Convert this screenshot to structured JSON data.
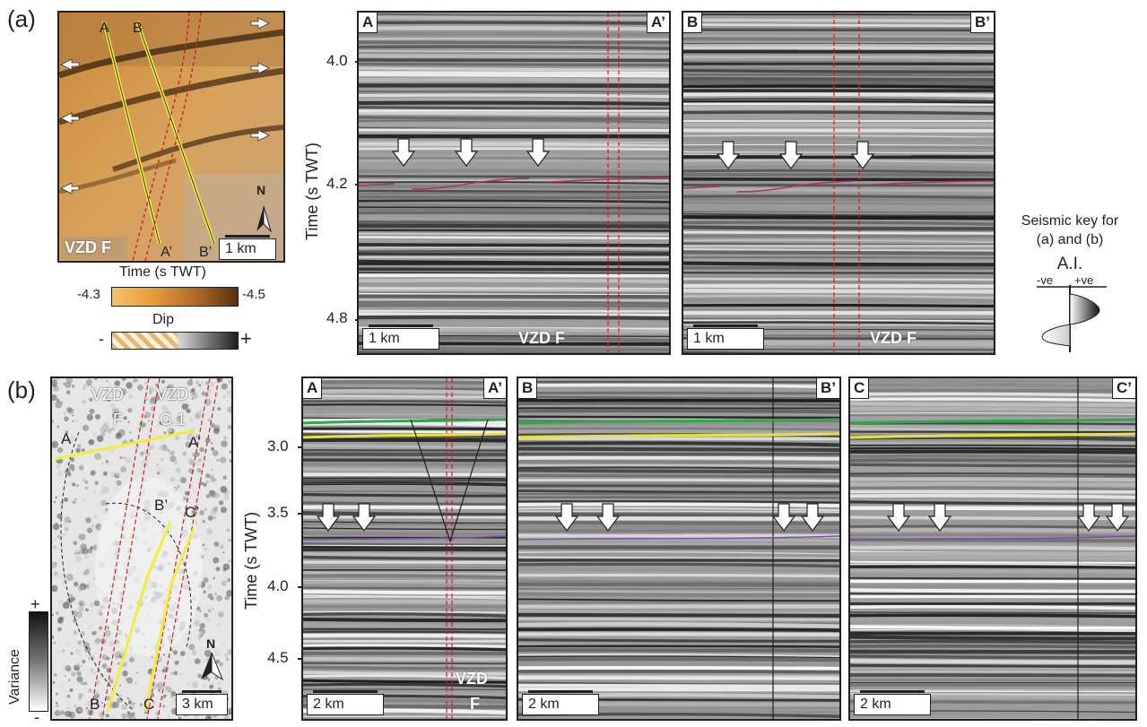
{
  "panel_a": {
    "label": "(a)",
    "map": {
      "section_lines": [
        "A",
        "B",
        "A’",
        "B’"
      ],
      "fault_label": "VZD F",
      "scale": "1 km",
      "north": "N",
      "colorbar_title": "Time (s TWT)",
      "colorbar_min": "-4.3",
      "colorbar_max": "-4.5",
      "dip_title": "Dip",
      "dip_minus": "-",
      "dip_plus": "+",
      "colors": {
        "low": "#f5c26a",
        "high": "#5a2f10"
      }
    },
    "axis": {
      "title": "Time (s TWT)",
      "ticks": [
        "4.0",
        "4.2",
        "4.8"
      ]
    },
    "sections": [
      {
        "start": "A",
        "end": "A’",
        "scale": "1 km",
        "fault_label": "VZD F"
      },
      {
        "start": "B",
        "end": "B’",
        "scale": "1 km",
        "fault_label": "VZD F"
      }
    ],
    "seismic_key": {
      "line1": "Seismic key for",
      "line2": "(a) and (b)",
      "ai": "A.I.",
      "neg": "-ve",
      "pos": "+ve"
    }
  },
  "panel_b": {
    "label": "(b)",
    "map": {
      "fault_labels": [
        "VZD",
        "F",
        "VZD",
        "G.1"
      ],
      "section_lines": [
        "A",
        "A’",
        "B’",
        "C’",
        "B",
        "C"
      ],
      "scale": "3 km",
      "north": "N",
      "variance_title": "Variance",
      "variance_plus": "+",
      "variance_minus": "-"
    },
    "axis": {
      "title": "Time (s TWT)",
      "ticks": [
        "3.0",
        "3.5",
        "4.0",
        "4.5"
      ]
    },
    "sections": [
      {
        "start": "A",
        "end": "A’",
        "scale": "2 km",
        "fault_label": [
          "VZD",
          "F"
        ]
      },
      {
        "start": "B",
        "end": "B’",
        "scale": "2 km"
      },
      {
        "start": "C",
        "end": "C’",
        "scale": "2 km"
      }
    ],
    "horizon_colors": {
      "green": "#2ea84a",
      "yellow": "#e8e23a",
      "purple": "#7b4fa8",
      "magenta": "#b0306a",
      "fault": "#cc1f2b"
    }
  }
}
